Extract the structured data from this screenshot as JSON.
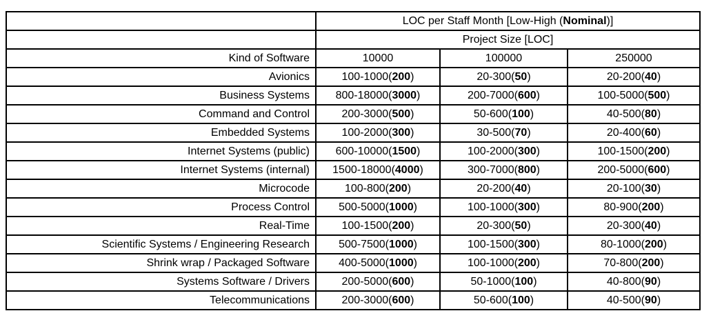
{
  "colors": {
    "background": "#ffffff",
    "text": "#000000",
    "border": "#000000"
  },
  "header": {
    "title": "LOC per Staff Month [Low-High (Nominal)]",
    "subtitle": "Project Size [LOC]"
  },
  "table": {
    "kind_header": "Kind of Software",
    "size_columns": [
      "10000",
      "100000",
      "250000"
    ],
    "rows": [
      {
        "kind": "Avionics",
        "cells": [
          "100-1000(200)",
          "20-300(50)",
          "20-200(40)"
        ]
      },
      {
        "kind": "Business Systems",
        "cells": [
          "800-18000(3000)",
          "200-7000(600)",
          "100-5000(500)"
        ]
      },
      {
        "kind": "Command and Control",
        "cells": [
          "200-3000(500)",
          "50-600(100)",
          "40-500(80)"
        ]
      },
      {
        "kind": "Embedded Systems",
        "cells": [
          "100-2000(300)",
          "30-500(70)",
          "20-400(60)"
        ]
      },
      {
        "kind": "Internet Systems (public)",
        "cells": [
          "600-10000(1500)",
          "100-2000(300)",
          "100-1500(200)"
        ]
      },
      {
        "kind": "Internet Systems (internal)",
        "cells": [
          "1500-18000(4000)",
          "300-7000(800)",
          "200-5000(600)"
        ]
      },
      {
        "kind": "Microcode",
        "cells": [
          "100-800(200)",
          "20-200(40)",
          "20-100(30)"
        ]
      },
      {
        "kind": "Process Control",
        "cells": [
          "500-5000(1000)",
          "100-1000(300)",
          "80-900(200)"
        ]
      },
      {
        "kind": "Real-Time",
        "cells": [
          "100-1500(200)",
          "20-300(50)",
          "20-300(40)"
        ]
      },
      {
        "kind": "Scientific Systems / Engineering Research",
        "cells": [
          "500-7500(1000)",
          "100-1500(300)",
          "80-1000(200)"
        ]
      },
      {
        "kind": "Shrink wrap / Packaged Software",
        "cells": [
          "400-5000(1000)",
          "100-1000(200)",
          "70-800(200)"
        ]
      },
      {
        "kind": "Systems Software / Drivers",
        "cells": [
          "200-5000(600)",
          "50-1000(100)",
          "40-800(90)"
        ]
      },
      {
        "kind": "Telecommunications",
        "cells": [
          "200-3000(600)",
          "50-600(100)",
          "40-500(90)"
        ]
      }
    ]
  }
}
